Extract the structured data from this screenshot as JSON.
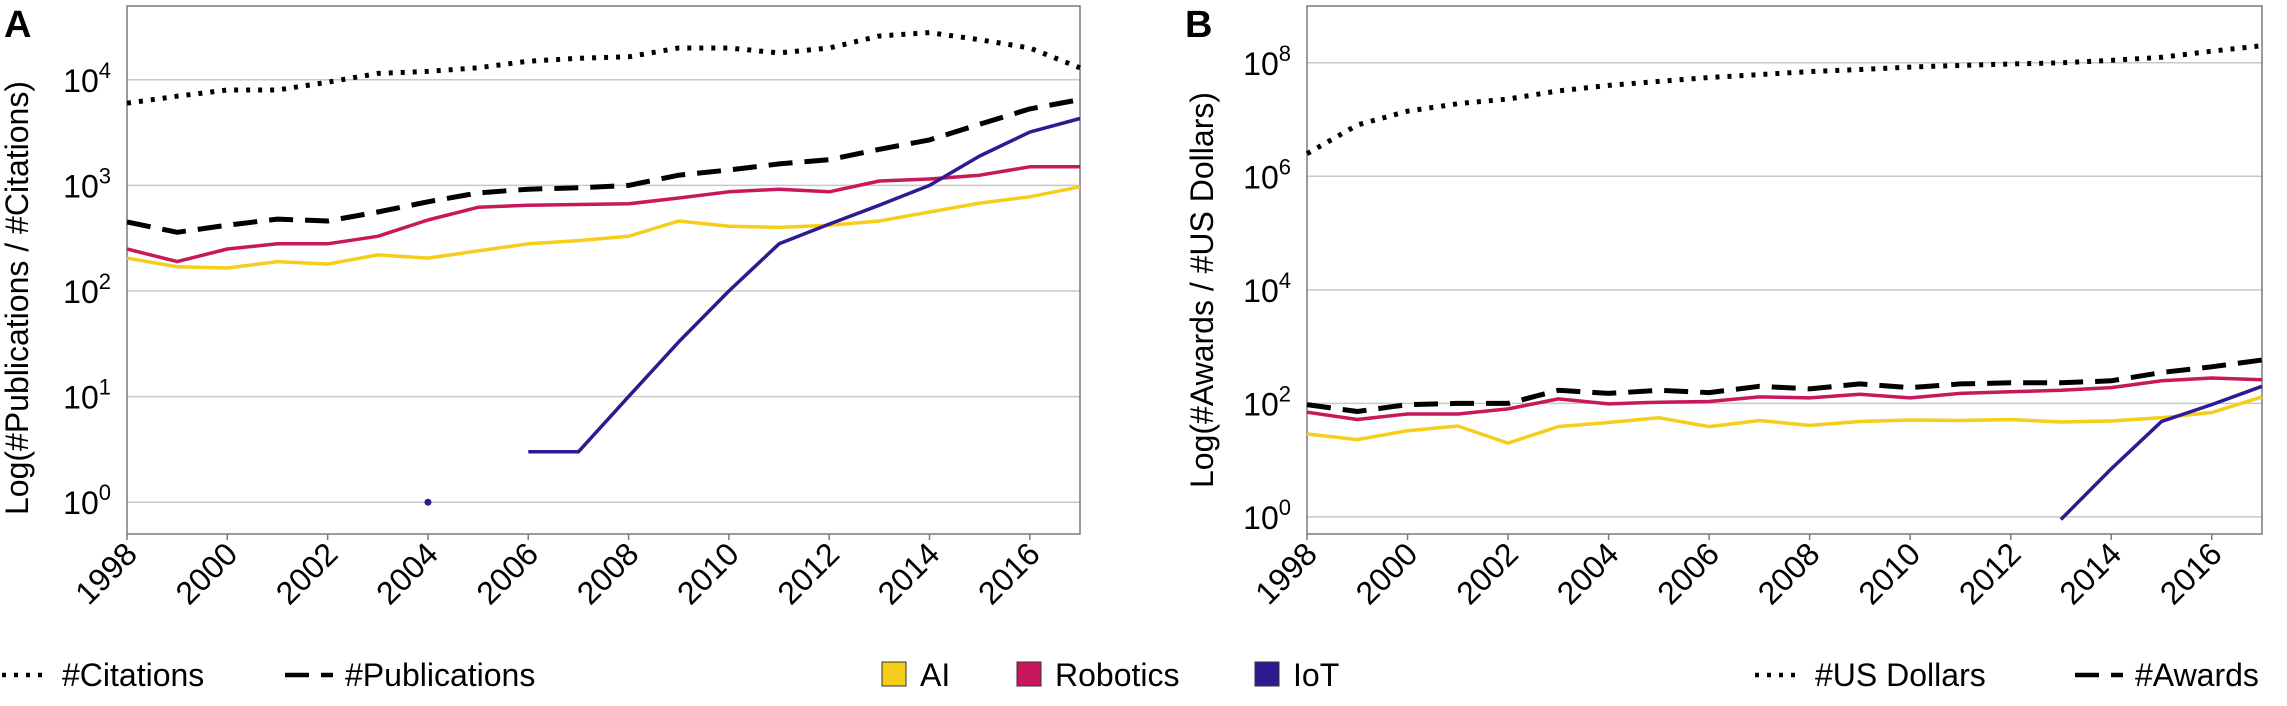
{
  "chart_data": [
    {
      "panel": "A",
      "type": "line",
      "ylabel": "Log(#Publications / #Citations)",
      "yscale": "log",
      "ylim": [
        0.5,
        50000
      ],
      "xlim": [
        1998,
        2017
      ],
      "yticks": [
        {
          "value": 1,
          "base": "10",
          "exp": "0"
        },
        {
          "value": 10,
          "base": "10",
          "exp": "1"
        },
        {
          "value": 100,
          "base": "10",
          "exp": "2"
        },
        {
          "value": 1000,
          "base": "10",
          "exp": "3"
        },
        {
          "value": 10000,
          "base": "10",
          "exp": "4"
        }
      ],
      "xticks": [
        "1998",
        "2000",
        "2002",
        "2004",
        "2006",
        "2008",
        "2010",
        "2012",
        "2014",
        "2016"
      ],
      "grid": true,
      "series": [
        {
          "name": "Citations",
          "category": "Total",
          "style": "dotted",
          "color": "#000000",
          "x": [
            1998,
            1999,
            2000,
            2001,
            2002,
            2003,
            2004,
            2005,
            2006,
            2007,
            2008,
            2009,
            2010,
            2011,
            2012,
            2013,
            2014,
            2015,
            2016,
            2017
          ],
          "values": [
            6000,
            7000,
            8000,
            8000,
            9500,
            11500,
            12000,
            13000,
            15000,
            16000,
            16500,
            20000,
            20000,
            18000,
            20000,
            26000,
            28000,
            24000,
            20000,
            13000
          ]
        },
        {
          "name": "Publications",
          "category": "Total",
          "style": "dashed",
          "color": "#000000",
          "x": [
            1998,
            1999,
            2000,
            2001,
            2002,
            2003,
            2004,
            2005,
            2006,
            2007,
            2008,
            2009,
            2010,
            2011,
            2012,
            2013,
            2014,
            2015,
            2016,
            2017
          ],
          "values": [
            450,
            360,
            420,
            480,
            460,
            560,
            700,
            850,
            920,
            950,
            1000,
            1250,
            1400,
            1600,
            1750,
            2200,
            2700,
            3800,
            5300,
            6500
          ]
        },
        {
          "name": "Robotics",
          "category": "Robotics",
          "style": "solid",
          "color": "#c8175d",
          "x": [
            1998,
            1999,
            2000,
            2001,
            2002,
            2003,
            2004,
            2005,
            2006,
            2007,
            2008,
            2009,
            2010,
            2011,
            2012,
            2013,
            2014,
            2015,
            2016,
            2017
          ],
          "values": [
            250,
            190,
            250,
            280,
            280,
            330,
            470,
            620,
            650,
            660,
            670,
            760,
            870,
            920,
            870,
            1100,
            1150,
            1250,
            1500,
            1500
          ]
        },
        {
          "name": "AI",
          "category": "AI",
          "style": "solid",
          "color": "#f5cd1b",
          "x": [
            1998,
            1999,
            2000,
            2001,
            2002,
            2003,
            2004,
            2005,
            2006,
            2007,
            2008,
            2009,
            2010,
            2011,
            2012,
            2013,
            2014,
            2015,
            2016,
            2017
          ],
          "values": [
            205,
            170,
            165,
            190,
            180,
            220,
            205,
            240,
            280,
            300,
            330,
            460,
            410,
            400,
            420,
            460,
            560,
            680,
            780,
            970
          ]
        },
        {
          "name": "IoT",
          "category": "IoT",
          "style": "solid",
          "color": "#2e1a91",
          "x": [
            2006,
            2007,
            2008,
            2009,
            2010,
            2011,
            2012,
            2013,
            2014,
            2015,
            2016,
            2017
          ],
          "values": [
            3,
            3,
            10,
            33,
            100,
            280,
            430,
            650,
            1000,
            1900,
            3200,
            4300
          ]
        },
        {
          "name": "IoT point",
          "category": "IoT",
          "style": "point",
          "color": "#2e1a91",
          "x": [
            2004
          ],
          "values": [
            1
          ]
        }
      ],
      "legend": [
        {
          "label": "#Citations",
          "style": "dotted"
        },
        {
          "label": "#Publications",
          "style": "dashed"
        }
      ]
    },
    {
      "panel": "B",
      "type": "line",
      "ylabel": "Log(#Awards / #US Dollars)",
      "yscale": "log",
      "ylim": [
        0.5,
        1000000000
      ],
      "xlim": [
        1998,
        2017
      ],
      "yticks": [
        {
          "value": 1,
          "base": "10",
          "exp": "0"
        },
        {
          "value": 100,
          "base": "10",
          "exp": "2"
        },
        {
          "value": 10000,
          "base": "10",
          "exp": "4"
        },
        {
          "value": 1000000,
          "base": "10",
          "exp": "6"
        },
        {
          "value": 100000000,
          "base": "10",
          "exp": "8"
        }
      ],
      "xticks": [
        "1998",
        "2000",
        "2002",
        "2004",
        "2006",
        "2008",
        "2010",
        "2012",
        "2014",
        "2016"
      ],
      "grid": true,
      "series": [
        {
          "name": "US Dollars",
          "category": "Total",
          "style": "dotted",
          "color": "#000000",
          "x": [
            1998,
            1999,
            2000,
            2001,
            2002,
            2003,
            2004,
            2005,
            2006,
            2007,
            2008,
            2009,
            2010,
            2011,
            2012,
            2013,
            2014,
            2015,
            2016,
            2017
          ],
          "values": [
            2500000,
            8000000,
            14000000,
            19000000,
            23000000,
            32000000,
            40000000,
            47000000,
            55000000,
            62000000,
            70000000,
            76000000,
            84000000,
            90000000,
            95000000,
            100000000,
            110000000,
            125000000,
            160000000,
            200000000
          ]
        },
        {
          "name": "Awards",
          "category": "Total",
          "style": "dashed",
          "color": "#000000",
          "x": [
            1998,
            1999,
            2000,
            2001,
            2002,
            2003,
            2004,
            2005,
            2006,
            2007,
            2008,
            2009,
            2010,
            2011,
            2012,
            2013,
            2014,
            2015,
            2016,
            2017
          ],
          "values": [
            95,
            72,
            95,
            100,
            100,
            170,
            150,
            170,
            155,
            200,
            180,
            220,
            190,
            220,
            230,
            230,
            250,
            350,
            440,
            580
          ]
        },
        {
          "name": "Robotics",
          "category": "Robotics",
          "style": "solid",
          "color": "#c8175d",
          "x": [
            1998,
            1999,
            2000,
            2001,
            2002,
            2003,
            2004,
            2005,
            2006,
            2007,
            2008,
            2009,
            2010,
            2011,
            2012,
            2013,
            2014,
            2015,
            2016,
            2017
          ],
          "values": [
            70,
            52,
            65,
            65,
            80,
            120,
            98,
            105,
            108,
            130,
            125,
            145,
            125,
            150,
            160,
            170,
            190,
            250,
            280,
            260
          ]
        },
        {
          "name": "AI",
          "category": "AI",
          "style": "solid",
          "color": "#f5cd1b",
          "x": [
            1998,
            1999,
            2000,
            2001,
            2002,
            2003,
            2004,
            2005,
            2006,
            2007,
            2008,
            2009,
            2010,
            2011,
            2012,
            2013,
            2014,
            2015,
            2016,
            2017
          ],
          "values": [
            29,
            23,
            33,
            40,
            20,
            39,
            46,
            56,
            39,
            50,
            41,
            48,
            51,
            50,
            52,
            47,
            49,
            56,
            69,
            130
          ]
        },
        {
          "name": "IoT",
          "category": "IoT",
          "style": "solid",
          "color": "#2e1a91",
          "x": [
            2013,
            2014,
            2015,
            2016,
            2017
          ],
          "values": [
            0.9,
            7,
            48,
            95,
            200
          ]
        }
      ],
      "legend": [
        {
          "label": "#US Dollars",
          "style": "dotted"
        },
        {
          "label": "#Awards",
          "style": "dashed"
        }
      ]
    }
  ],
  "category_legend": [
    {
      "label": "AI",
      "color": "#f5cd1b"
    },
    {
      "label": "Robotics",
      "color": "#c8175d"
    },
    {
      "label": "IoT",
      "color": "#2e1a91"
    }
  ]
}
